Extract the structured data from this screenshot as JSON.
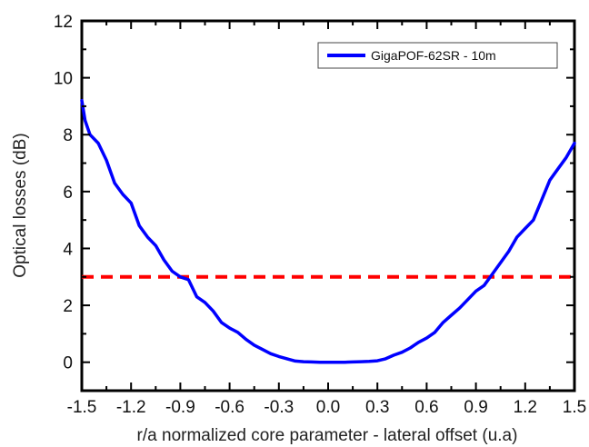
{
  "chart_data": {
    "type": "line",
    "xlabel": "r/a normalized core parameter - lateral offset (u.a)",
    "ylabel": "Optical losses (dB)",
    "xlim": [
      -1.5,
      1.5
    ],
    "ylim": [
      -1,
      12
    ],
    "x_ticks": [
      -1.5,
      -1.2,
      -0.9,
      -0.6,
      -0.3,
      0.0,
      0.3,
      0.6,
      0.9,
      1.2,
      1.5
    ],
    "x_tick_labels": [
      "-1.5",
      "-1.2",
      "-0.9",
      "-0.6",
      "-0.3",
      "0.0",
      "0.3",
      "0.6",
      "0.9",
      "1.2",
      "1.5"
    ],
    "y_ticks": [
      0,
      2,
      4,
      6,
      8,
      10,
      12
    ],
    "y_tick_labels": [
      "0",
      "2",
      "4",
      "6",
      "8",
      "10",
      "12"
    ],
    "legend_position": "top-right",
    "series": [
      {
        "name": "GigaPOF-62SR - 10m",
        "color": "#0000ff",
        "x": [
          -1.5,
          -1.48,
          -1.45,
          -1.4,
          -1.35,
          -1.3,
          -1.25,
          -1.2,
          -1.15,
          -1.1,
          -1.05,
          -1.0,
          -0.95,
          -0.9,
          -0.85,
          -0.8,
          -0.75,
          -0.7,
          -0.65,
          -0.6,
          -0.55,
          -0.5,
          -0.45,
          -0.4,
          -0.35,
          -0.3,
          -0.25,
          -0.2,
          -0.15,
          -0.1,
          -0.05,
          0.0,
          0.05,
          0.1,
          0.15,
          0.2,
          0.25,
          0.3,
          0.35,
          0.4,
          0.45,
          0.5,
          0.55,
          0.6,
          0.65,
          0.7,
          0.75,
          0.8,
          0.85,
          0.9,
          0.95,
          1.0,
          1.05,
          1.1,
          1.15,
          1.2,
          1.25,
          1.3,
          1.35,
          1.4,
          1.45,
          1.5
        ],
        "y": [
          9.2,
          8.5,
          8.0,
          7.7,
          7.1,
          6.3,
          5.9,
          5.6,
          4.8,
          4.4,
          4.1,
          3.6,
          3.2,
          3.0,
          2.9,
          2.3,
          2.1,
          1.8,
          1.4,
          1.2,
          1.05,
          0.8,
          0.6,
          0.45,
          0.3,
          0.2,
          0.12,
          0.04,
          0.02,
          0.01,
          0.0,
          0.0,
          0.0,
          0.0,
          0.01,
          0.02,
          0.03,
          0.05,
          0.12,
          0.25,
          0.35,
          0.5,
          0.7,
          0.85,
          1.05,
          1.4,
          1.65,
          1.9,
          2.2,
          2.5,
          2.7,
          3.1,
          3.5,
          3.9,
          4.4,
          4.7,
          5.0,
          5.7,
          6.4,
          6.8,
          7.2,
          7.7
        ]
      }
    ],
    "reference_lines": [
      {
        "y": 3,
        "color": "#ff0000",
        "style": "dashed"
      }
    ]
  }
}
